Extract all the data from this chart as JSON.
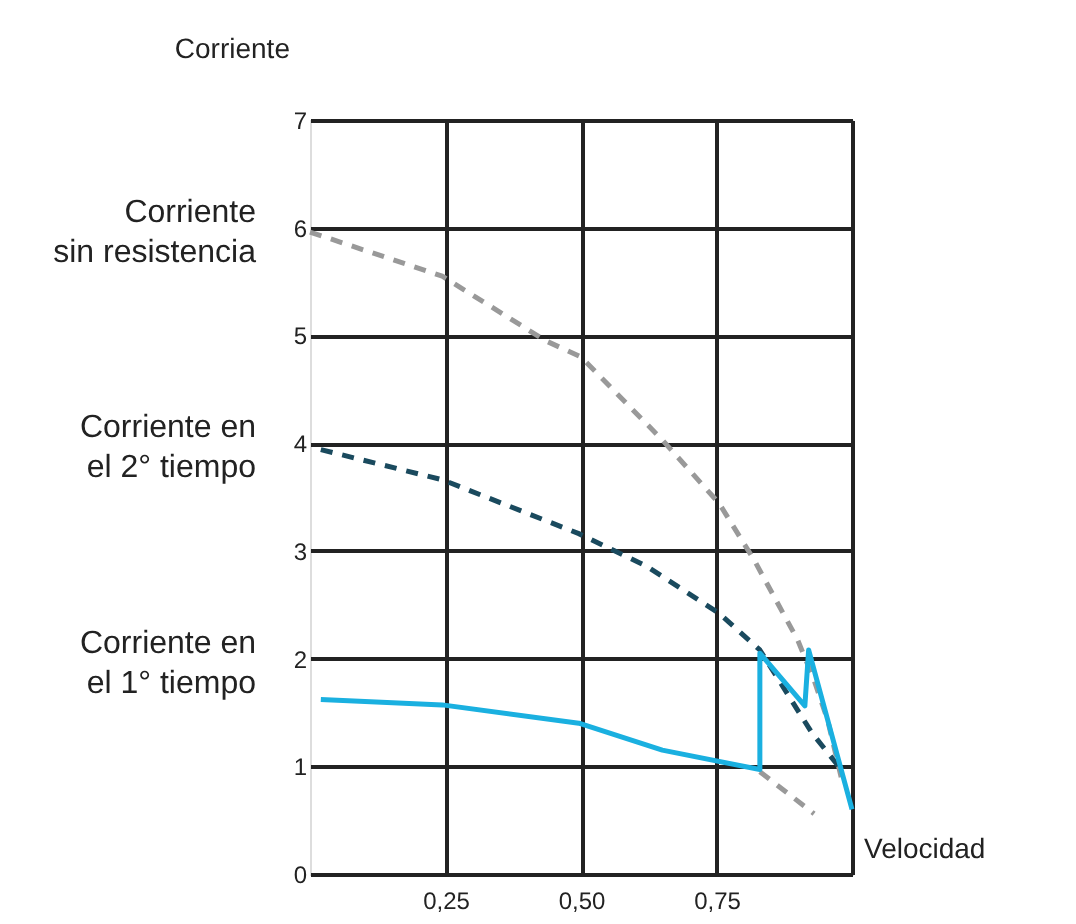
{
  "chart_data": {
    "type": "line",
    "xlabel": "Velocidad",
    "ylabel": "Corriente",
    "xlim": [
      0,
      1
    ],
    "ylim": [
      0,
      7
    ],
    "xticks": [
      {
        "value": 0.25,
        "label": "0,25"
      },
      {
        "value": 0.5,
        "label": "0,50"
      },
      {
        "value": 0.75,
        "label": "0,75"
      },
      {
        "value": 1,
        "label": null
      }
    ],
    "yticks": [
      0,
      1,
      2,
      3,
      4,
      5,
      6,
      7
    ],
    "grid": true,
    "series": [
      {
        "color": "#999999",
        "line_style": "dashed",
        "x": [
          0,
          0.244,
          0.435,
          0.5,
          0.65,
          0.755,
          0.82,
          0.9,
          0.93,
          0.955,
          0.98
        ],
        "values": [
          5.96,
          5.55,
          4.95,
          4.8,
          4.03,
          3.44,
          2.91,
          2.17,
          1.8,
          1.43,
          0.9
        ]
      },
      {
        "color": "#999999",
        "line_style": "dashed",
        "x": [
          0.83,
          0.93
        ],
        "values": [
          0.95,
          0.56
        ]
      },
      {
        "color": "#1a4a5e",
        "line_style": "dashed",
        "x": [
          0.02,
          0.244,
          0.496,
          0.62,
          0.755,
          0.83,
          0.926,
          0.98
        ],
        "values": [
          3.94,
          3.66,
          3.16,
          2.86,
          2.42,
          2.08,
          1.31,
          0.97
        ]
      },
      {
        "color": "#1ab0e0",
        "line_style": "solid",
        "x": [
          0.02,
          0.244,
          0.496,
          0.65,
          0.83,
          0.83,
          0.913,
          0.92,
          1.0
        ],
        "values": [
          1.62,
          1.57,
          1.4,
          1.15,
          0.97,
          2.05,
          1.56,
          2.08,
          0.6
        ]
      }
    ],
    "annotations": [
      "Corriente\nsin resistencia",
      "Corriente en\nel 2° tiempo",
      "Corriente en\nel 1° tiempo"
    ]
  }
}
